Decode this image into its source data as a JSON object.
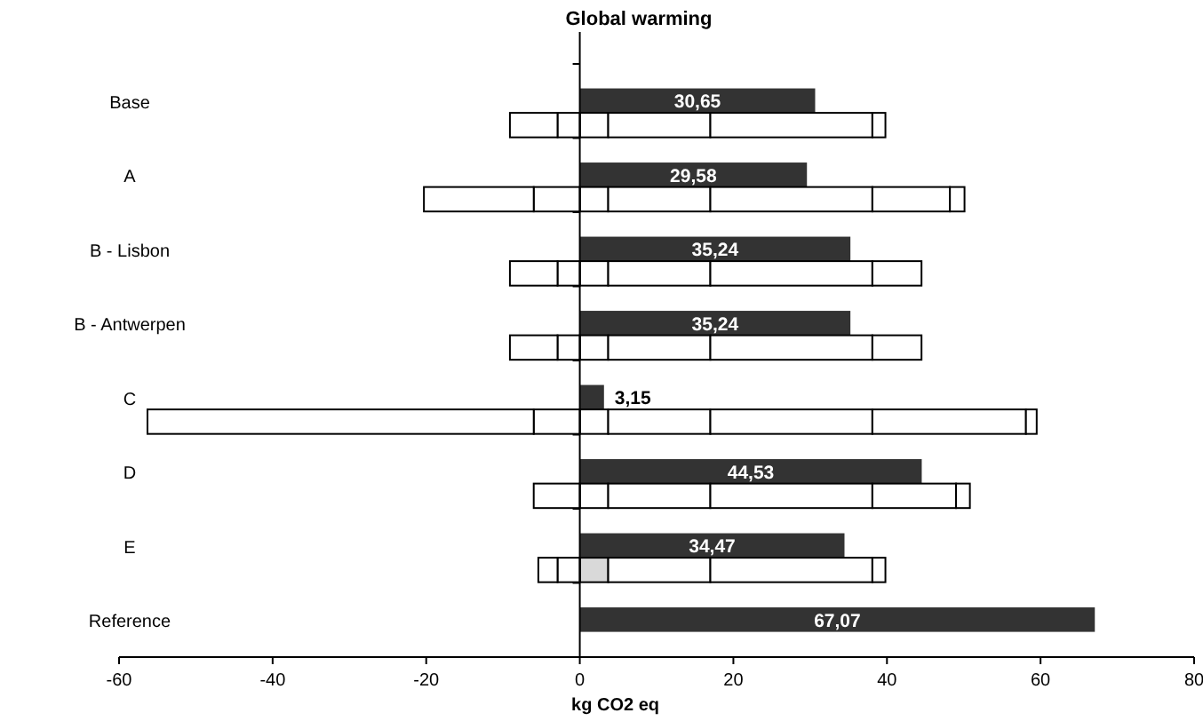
{
  "chart_data": {
    "type": "bar",
    "orientation": "horizontal",
    "title": "Global warming",
    "xlabel": "kg CO2 eq",
    "categories": [
      "Base",
      "A",
      "B - Lisbon",
      "B - Antwerpen",
      "C",
      "D",
      "E",
      "Reference"
    ],
    "xlim": [
      -60,
      80
    ],
    "xticks": [
      -60,
      -40,
      -20,
      0,
      20,
      40,
      60,
      80
    ],
    "series": [
      {
        "color": "#333333",
        "values": [
          30.65,
          29.58,
          35.24,
          35.24,
          3.15,
          44.53,
          34.47,
          67.07
        ],
        "value_labels": [
          "30,65",
          "29,58",
          "35,24",
          "35,24",
          "3,15",
          "44,53",
          "34,47",
          "67,07"
        ]
      },
      {
        "colors": [
          "#ffffff",
          "#ffffff",
          "#ffffff",
          "#ffffff",
          "#ffffff",
          "#ffffff",
          "#d9d9d9",
          null
        ],
        "base": [
          0,
          0,
          0,
          0,
          0,
          0,
          0,
          null
        ],
        "values": [
          3.7,
          3.7,
          3.7,
          3.7,
          3.7,
          3.7,
          3.7,
          null
        ]
      },
      {
        "color": "#ffffff",
        "base": [
          3.7,
          3.7,
          3.7,
          3.7,
          3.7,
          3.7,
          3.7,
          null
        ],
        "values": [
          13.3,
          13.3,
          13.3,
          13.3,
          13.3,
          13.3,
          13.3,
          null
        ]
      },
      {
        "color": "#ffffff",
        "base": [
          17,
          17,
          17,
          17,
          17,
          17,
          17,
          null
        ],
        "values": [
          21.1,
          21.1,
          21.1,
          21.1,
          21.1,
          21.1,
          21.1,
          null
        ]
      },
      {
        "color": "#ffffff",
        "base": [
          38.1,
          38.1,
          38.1,
          38.1,
          38.1,
          38.1,
          38.1,
          null
        ],
        "values": [
          1.7,
          10.1,
          6.4,
          6.4,
          20,
          10.9,
          1.7,
          null
        ]
      },
      {
        "color": "#ffffff",
        "base": [
          null,
          48.2,
          null,
          null,
          58.1,
          49,
          null,
          null
        ],
        "values": [
          null,
          1.9,
          null,
          null,
          1.4,
          1.8,
          null,
          null
        ]
      },
      {
        "color": "#ffffff",
        "base": [
          0,
          0,
          0,
          0,
          0,
          0,
          0,
          null
        ],
        "values": [
          -2.9,
          -6,
          -2.9,
          -2.9,
          -6,
          -6,
          -2.9,
          null
        ]
      },
      {
        "color": "#ffffff",
        "base": [
          -2.9,
          -6,
          -2.9,
          -2.9,
          -6,
          null,
          -2.9,
          null
        ],
        "values": [
          -6.2,
          -14.3,
          -6.2,
          -6.2,
          -50.3,
          null,
          -2.5,
          null
        ]
      }
    ]
  }
}
